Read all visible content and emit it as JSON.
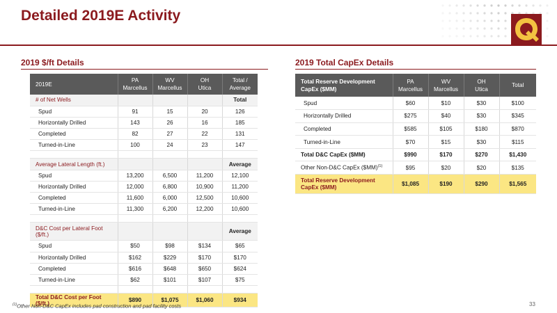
{
  "title": "Detailed 2019E Activity",
  "left": {
    "section_title": "2019 $/ft Details",
    "header": [
      "2019E",
      "PA\nMarcellus",
      "WV\nMarcellus",
      "OH\nUtica",
      "Total /\nAverage"
    ],
    "wells": {
      "label": "# of Net Wells",
      "agg": "Total",
      "rows": [
        [
          "Spud",
          "91",
          "15",
          "20",
          "126"
        ],
        [
          "Horizontally Drilled",
          "143",
          "26",
          "16",
          "185"
        ],
        [
          "Completed",
          "82",
          "27",
          "22",
          "131"
        ],
        [
          "Turned-in-Line",
          "100",
          "24",
          "23",
          "147"
        ]
      ]
    },
    "lateral": {
      "label": "Average Lateral Length (ft.)",
      "agg": "Average",
      "rows": [
        [
          "Spud",
          "13,200",
          "6,500",
          "11,200",
          "12,100"
        ],
        [
          "Horizontally Drilled",
          "12,000",
          "6,800",
          "10,900",
          "11,200"
        ],
        [
          "Completed",
          "11,600",
          "6,000",
          "12,500",
          "10,600"
        ],
        [
          "Turned-in-Line",
          "11,300",
          "6,200",
          "12,200",
          "10,600"
        ]
      ]
    },
    "cost": {
      "label": "D&C Cost per Lateral Foot ($/ft.)",
      "agg": "Average",
      "rows": [
        [
          "Spud",
          "$50",
          "$98",
          "$134",
          "$65"
        ],
        [
          "Horizontally Drilled",
          "$162",
          "$229",
          "$170",
          "$170"
        ],
        [
          "Completed",
          "$616",
          "$648",
          "$650",
          "$624"
        ],
        [
          "Turned-in-Line",
          "$62",
          "$101",
          "$107",
          "$75"
        ]
      ]
    },
    "total": [
      "Total D&C Cost per Foot ($/ft.)",
      "$890",
      "$1,075",
      "$1,060",
      "$934"
    ]
  },
  "right": {
    "section_title": "2019 Total CapEx Details",
    "header": [
      "Total Reserve Development\nCapEx ($MM)",
      "PA\nMarcellus",
      "WV\nMarcellus",
      "OH\nUtica",
      "Total"
    ],
    "rows": [
      [
        "Spud",
        "$60",
        "$10",
        "$30",
        "$100"
      ],
      [
        "Horizontally Drilled",
        "$275",
        "$40",
        "$30",
        "$345"
      ],
      [
        "Completed",
        "$585",
        "$105",
        "$180",
        "$870"
      ],
      [
        "Turned-in-Line",
        "$70",
        "$15",
        "$30",
        "$115"
      ]
    ],
    "dc_total": [
      "Total D&C CapEx ($MM)",
      "$990",
      "$170",
      "$270",
      "$1,430"
    ],
    "other": {
      "label": "Other Non-D&C CapEx ($MM)",
      "sup": "(1)",
      "values": [
        "$95",
        "$20",
        "$20",
        "$135"
      ]
    },
    "total": [
      "Total Reserve Development\nCapEx ($MM)",
      "$1,085",
      "$190",
      "$290",
      "$1,565"
    ]
  },
  "footnote": {
    "sup": "(1)",
    "text": "Other Non-D&C CapEx includes pad construction and pad facility costs"
  },
  "page_number": "33",
  "colors": {
    "accent": "#8b1a1e",
    "header_bg": "#5a5a5a",
    "highlight": "#fbe683"
  },
  "logo_icon": "q-logo-icon"
}
